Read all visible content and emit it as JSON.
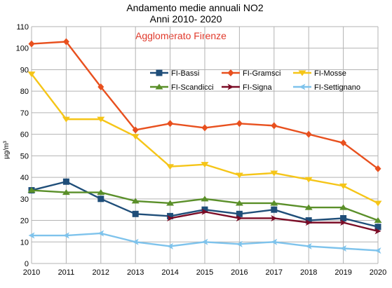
{
  "chart_data": {
    "type": "line",
    "title": "Andamento medie annuali NO2",
    "subtitle": "Anni 2010- 2020",
    "annotation": "Agglomerato Firenze",
    "annotation_color": "#e0392b",
    "ylabel": "µg/m³",
    "xlabel": "",
    "ylim": [
      0,
      110
    ],
    "yticks": [
      0,
      10,
      20,
      30,
      40,
      50,
      60,
      70,
      80,
      90,
      100,
      110
    ],
    "x": [
      "2010",
      "2011",
      "2012",
      "2013",
      "2014",
      "2015",
      "2016",
      "2017",
      "2018",
      "2019",
      "2020"
    ],
    "grid": true,
    "legend_position": "top-right",
    "series": [
      {
        "name": "FI-Bassi",
        "color": "#1f4e79",
        "marker": "square",
        "values": [
          34,
          38,
          30,
          23,
          22,
          25,
          23,
          25,
          20,
          21,
          17
        ]
      },
      {
        "name": "FI-Gramsci",
        "color": "#e8501e",
        "marker": "diamond",
        "values": [
          102,
          103,
          82,
          62,
          65,
          63,
          65,
          64,
          60,
          56,
          44
        ]
      },
      {
        "name": "FI-Mosse",
        "color": "#f5c518",
        "marker": "triangle-down",
        "values": [
          88,
          67,
          67,
          59,
          45,
          46,
          41,
          42,
          39,
          36,
          28
        ]
      },
      {
        "name": "FI-Scandicci",
        "color": "#5a8f29",
        "marker": "triangle-up",
        "values": [
          34,
          33,
          33,
          29,
          28,
          30,
          28,
          28,
          26,
          26,
          20
        ]
      },
      {
        "name": "FI-Signa",
        "color": "#7b0c26",
        "marker": "arrow-right",
        "values": [
          null,
          null,
          null,
          null,
          21,
          24,
          21,
          21,
          19,
          19,
          15
        ]
      },
      {
        "name": "FI-Settignano",
        "color": "#7ec3ec",
        "marker": "arrow-left",
        "values": [
          13,
          13,
          14,
          10,
          8,
          10,
          9,
          10,
          8,
          7,
          6
        ]
      }
    ]
  }
}
